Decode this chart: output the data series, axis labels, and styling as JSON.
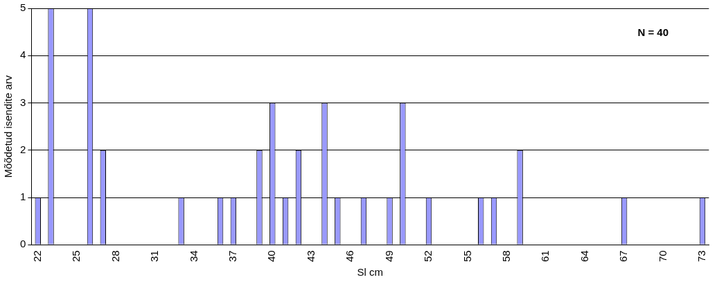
{
  "chart_data": {
    "type": "bar",
    "xlabel": "Sl cm",
    "ylabel": "Mõõdetud isendite arv",
    "categories": [
      "22",
      null,
      null,
      "25",
      null,
      null,
      "28",
      null,
      null,
      "31",
      null,
      null,
      "34",
      null,
      null,
      "37",
      null,
      null,
      "40",
      null,
      null,
      "43",
      null,
      null,
      "46",
      null,
      null,
      "49",
      null,
      null,
      "52",
      null,
      null,
      "55",
      null,
      null,
      "58",
      null,
      null,
      "61",
      null,
      null,
      "64",
      null,
      null,
      "67",
      null,
      null,
      "70",
      null,
      null,
      "73"
    ],
    "values": [
      1,
      5,
      0,
      0,
      5,
      2,
      0,
      0,
      0,
      0,
      0,
      1,
      0,
      0,
      1,
      1,
      0,
      2,
      3,
      1,
      2,
      0,
      3,
      1,
      0,
      1,
      0,
      1,
      3,
      0,
      1,
      0,
      0,
      0,
      1,
      1,
      0,
      2,
      0,
      0,
      0,
      0,
      0,
      0,
      0,
      1,
      0,
      0,
      0,
      0,
      0,
      1
    ],
    "color": "#9999ff",
    "ylim": [
      0,
      5
    ],
    "yticks": [
      0,
      1,
      2,
      3,
      4,
      5
    ],
    "grid": "y",
    "legend": false,
    "annotations": [
      "N = 40"
    ]
  }
}
